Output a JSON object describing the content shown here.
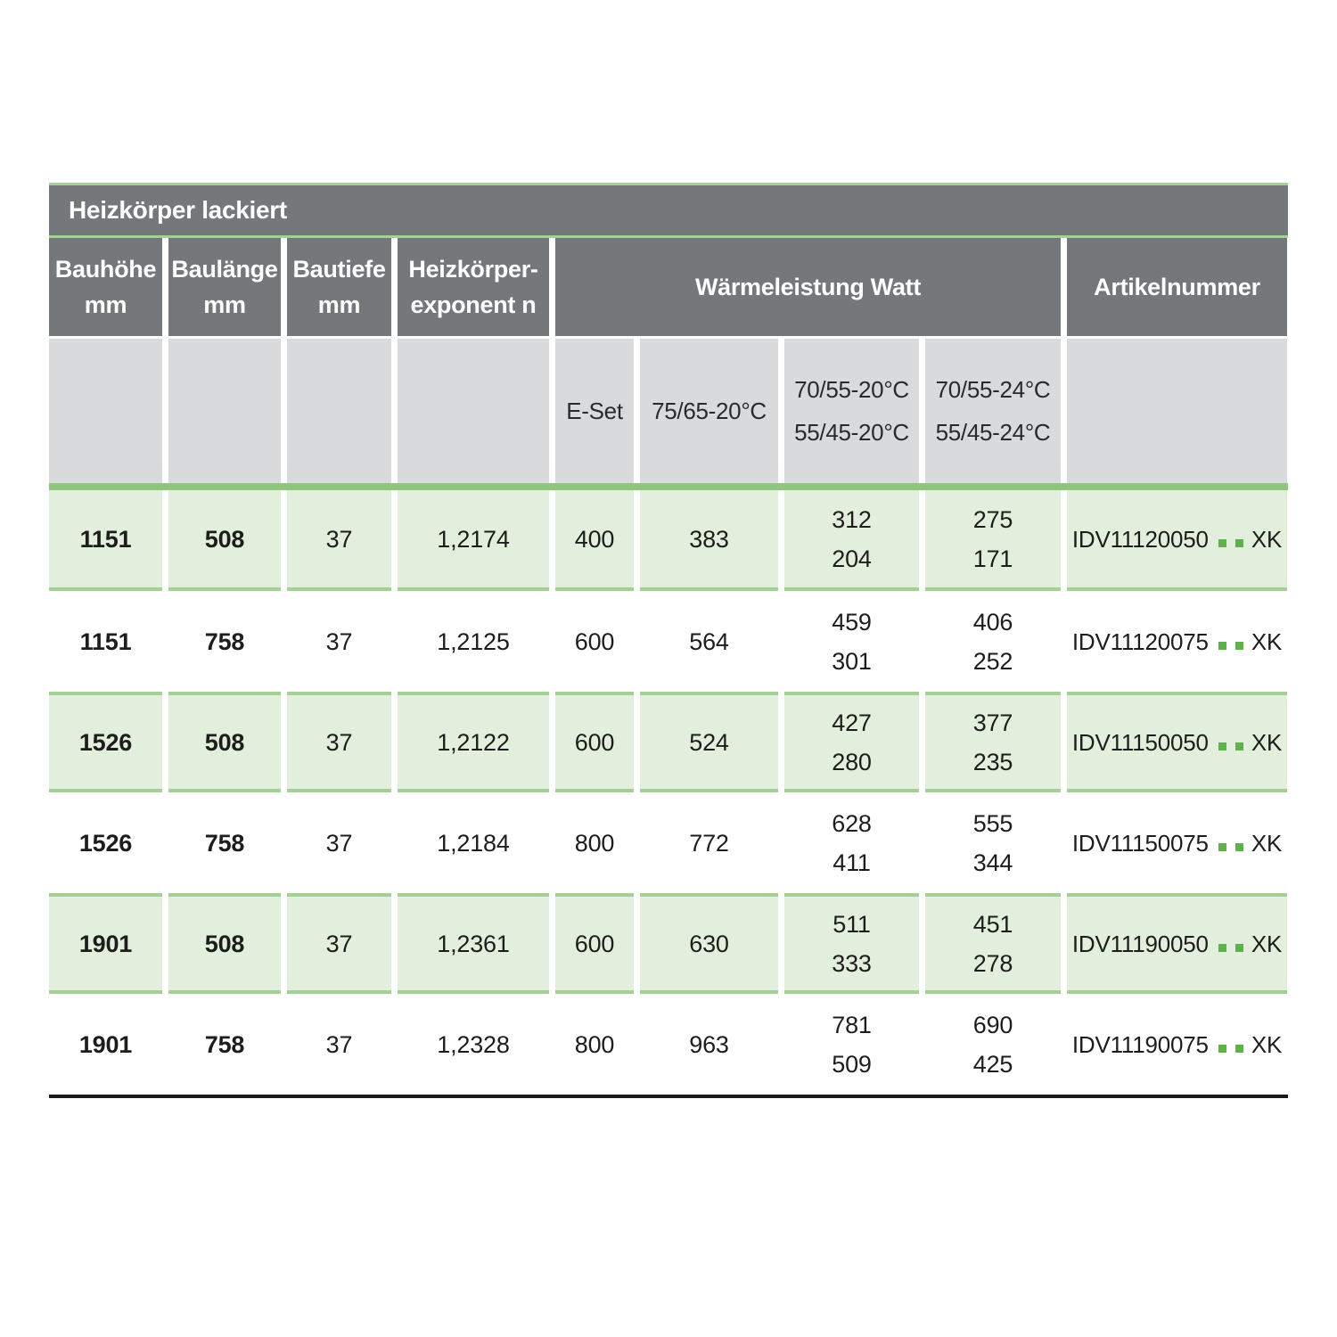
{
  "table": {
    "title": "Heizkörper lackiert",
    "columns": [
      {
        "line1": "Bauhöhe",
        "line2": "mm"
      },
      {
        "line1": "Baulänge",
        "line2": "mm"
      },
      {
        "line1": "Bautiefe",
        "line2": "mm"
      },
      {
        "line1": "Heizkörper-",
        "line2": "exponent n"
      }
    ],
    "watt_group_label": "Wärmeleistung Watt",
    "artikel_label": "Artikelnummer",
    "subcolumns": {
      "e_set": "E-Set",
      "t7565": "75/65-20°C",
      "t70_20": [
        "70/55-20°C",
        "55/45-20°C"
      ],
      "t70_24": [
        "70/55-24°C",
        "55/45-24°C"
      ]
    },
    "rows": [
      {
        "height": "1151",
        "length": "508",
        "depth": "37",
        "exponent": "1,2174",
        "e_set": "400",
        "w7565": "383",
        "w70_20": [
          "312",
          "204"
        ],
        "w70_24": [
          "275",
          "171"
        ],
        "article": {
          "code": "IDV11120050",
          "suffix": "XK"
        }
      },
      {
        "height": "1151",
        "length": "758",
        "depth": "37",
        "exponent": "1,2125",
        "e_set": "600",
        "w7565": "564",
        "w70_20": [
          "459",
          "301"
        ],
        "w70_24": [
          "406",
          "252"
        ],
        "article": {
          "code": "IDV11120075",
          "suffix": "XK"
        }
      },
      {
        "height": "1526",
        "length": "508",
        "depth": "37",
        "exponent": "1,2122",
        "e_set": "600",
        "w7565": "524",
        "w70_20": [
          "427",
          "280"
        ],
        "w70_24": [
          "377",
          "235"
        ],
        "article": {
          "code": "IDV11150050",
          "suffix": "XK"
        }
      },
      {
        "height": "1526",
        "length": "758",
        "depth": "37",
        "exponent": "1,2184",
        "e_set": "800",
        "w7565": "772",
        "w70_20": [
          "628",
          "411"
        ],
        "w70_24": [
          "555",
          "344"
        ],
        "article": {
          "code": "IDV11150075",
          "suffix": "XK"
        }
      },
      {
        "height": "1901",
        "length": "508",
        "depth": "37",
        "exponent": "1,2361",
        "e_set": "600",
        "w7565": "630",
        "w70_20": [
          "511",
          "333"
        ],
        "w70_24": [
          "451",
          "278"
        ],
        "article": {
          "code": "IDV11190050",
          "suffix": "XK"
        }
      },
      {
        "height": "1901",
        "length": "758",
        "depth": "37",
        "exponent": "1,2328",
        "e_set": "800",
        "w7565": "963",
        "w70_20": [
          "781",
          "509"
        ],
        "w70_24": [
          "690",
          "425"
        ],
        "article": {
          "code": "IDV11190075",
          "suffix": "XK"
        }
      }
    ],
    "colors": {
      "header_gray": "#75787b",
      "subheader_gray": "#d9dadb",
      "row_green": "#e3efdd",
      "accent_green": "#8fc57d",
      "separator_green": "#a4cf95",
      "dot_green": "#5fb24b",
      "text_dark": "#1d1d1b",
      "bottom_line_black": "#1a1a1a"
    }
  }
}
